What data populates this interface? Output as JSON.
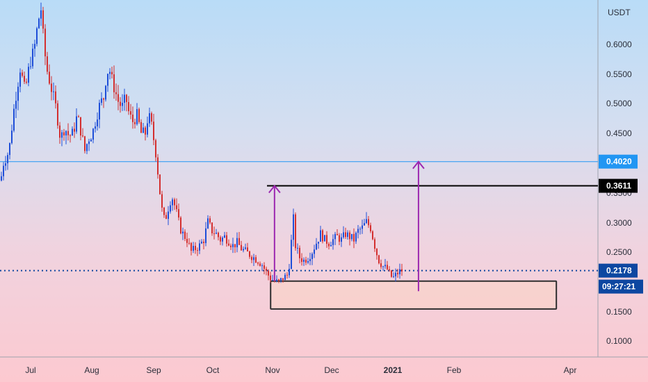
{
  "chart_data": {
    "type": "candlestick",
    "quote_currency": "USDT",
    "y_ticks": [
      "0.6000",
      "0.5500",
      "0.5000",
      "0.4500",
      "0.3500",
      "0.3000",
      "0.2500",
      "0.1500",
      "0.1000"
    ],
    "x_ticks": [
      "Jul",
      "Aug",
      "Sep",
      "Oct",
      "Nov",
      "Dec",
      "2021",
      "Feb",
      "Apr"
    ],
    "ylim": [
      0.05,
      0.65
    ],
    "price_path": [
      [
        0,
        0.37
      ],
      [
        4,
        0.4
      ],
      [
        12,
        0.42
      ],
      [
        20,
        0.5
      ],
      [
        28,
        0.56
      ],
      [
        35,
        0.52
      ],
      [
        42,
        0.57
      ],
      [
        48,
        0.59
      ],
      [
        54,
        0.64
      ],
      [
        58,
        0.66
      ],
      [
        62,
        0.6
      ],
      [
        66,
        0.56
      ],
      [
        70,
        0.54
      ],
      [
        76,
        0.51
      ],
      [
        80,
        0.49
      ],
      [
        86,
        0.44
      ],
      [
        92,
        0.46
      ],
      [
        98,
        0.445
      ],
      [
        104,
        0.45
      ],
      [
        110,
        0.48
      ],
      [
        116,
        0.45
      ],
      [
        121,
        0.42
      ],
      [
        126,
        0.44
      ],
      [
        132,
        0.45
      ],
      [
        138,
        0.48
      ],
      [
        143,
        0.5
      ],
      [
        148,
        0.51
      ],
      [
        152,
        0.55
      ],
      [
        156,
        0.56
      ],
      [
        160,
        0.54
      ],
      [
        165,
        0.52
      ],
      [
        170,
        0.5
      ],
      [
        175,
        0.495
      ],
      [
        180,
        0.51
      ],
      [
        185,
        0.48
      ],
      [
        190,
        0.47
      ],
      [
        196,
        0.48
      ],
      [
        202,
        0.45
      ],
      [
        208,
        0.45
      ],
      [
        212,
        0.48
      ],
      [
        216,
        0.47
      ],
      [
        220,
        0.44
      ],
      [
        224,
        0.41
      ],
      [
        228,
        0.36
      ],
      [
        232,
        0.32
      ],
      [
        236,
        0.3
      ],
      [
        240,
        0.32
      ],
      [
        246,
        0.345
      ],
      [
        252,
        0.32
      ],
      [
        258,
        0.29
      ],
      [
        262,
        0.28
      ],
      [
        268,
        0.27
      ],
      [
        274,
        0.25
      ],
      [
        280,
        0.255
      ],
      [
        286,
        0.26
      ],
      [
        292,
        0.27
      ],
      [
        298,
        0.3
      ],
      [
        304,
        0.285
      ],
      [
        310,
        0.28
      ],
      [
        316,
        0.27
      ],
      [
        322,
        0.275
      ],
      [
        328,
        0.268
      ],
      [
        334,
        0.26
      ],
      [
        340,
        0.265
      ],
      [
        346,
        0.255
      ],
      [
        352,
        0.25
      ],
      [
        358,
        0.245
      ],
      [
        364,
        0.24
      ],
      [
        370,
        0.235
      ],
      [
        376,
        0.228
      ],
      [
        382,
        0.215
      ],
      [
        388,
        0.205
      ],
      [
        394,
        0.2
      ],
      [
        400,
        0.198
      ],
      [
        406,
        0.205
      ],
      [
        412,
        0.21
      ],
      [
        417,
        0.24
      ],
      [
        420,
        0.32
      ],
      [
        424,
        0.26
      ],
      [
        430,
        0.24
      ],
      [
        436,
        0.235
      ],
      [
        442,
        0.24
      ],
      [
        448,
        0.25
      ],
      [
        454,
        0.265
      ],
      [
        460,
        0.28
      ],
      [
        466,
        0.27
      ],
      [
        472,
        0.265
      ],
      [
        478,
        0.27
      ],
      [
        484,
        0.275
      ],
      [
        490,
        0.27
      ],
      [
        496,
        0.28
      ],
      [
        502,
        0.275
      ],
      [
        508,
        0.27
      ],
      [
        514,
        0.285
      ],
      [
        520,
        0.29
      ],
      [
        526,
        0.3
      ],
      [
        532,
        0.29
      ],
      [
        536,
        0.27
      ],
      [
        540,
        0.25
      ],
      [
        544,
        0.235
      ],
      [
        550,
        0.225
      ],
      [
        556,
        0.22
      ],
      [
        560,
        0.21
      ],
      [
        564,
        0.205
      ],
      [
        568,
        0.21
      ],
      [
        572,
        0.215
      ],
      [
        576,
        0.218
      ],
      [
        580,
        0.218
      ]
    ],
    "resistance_level": 0.3611,
    "horizontal_line": 0.402,
    "current_price": 0.2178,
    "support_zone": {
      "from_date": "Oct 31, 2020",
      "to_date": "Mar 25, 2021",
      "low": 0.153,
      "high": 0.2
    },
    "arrows": [
      {
        "x_date": "Nov 2, 2020",
        "from": 0.2,
        "to": 0.3611
      },
      {
        "x_date": "Jan 14, 2021",
        "from": 0.183,
        "to": 0.402
      }
    ],
    "price_labels": [
      {
        "text": "0.4020",
        "color": "#2196f3"
      },
      {
        "text": "0.3611",
        "color": "#000000"
      },
      {
        "text": "0.2178",
        "color": "#0d47a1"
      },
      {
        "text": "09:27:21",
        "color": "#0d47a1"
      }
    ]
  }
}
